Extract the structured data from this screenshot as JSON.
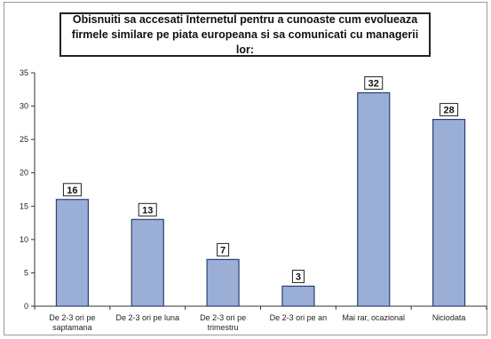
{
  "colors": {
    "bar": "#9aaed6",
    "bar_stroke": "#2b3f73",
    "axis": "#333333",
    "label_box": "#ffffff"
  },
  "chart_data": {
    "type": "bar",
    "title_lines": [
      "Obisnuiti sa accesati Internetul pentru a cunoaste cum evolueaza",
      "firmele similare pe piata europeana si sa comunicati cu managerii lor:"
    ],
    "categories": [
      [
        "De 2-3 ori pe",
        "saptamana"
      ],
      [
        "De 2-3 ori pe luna"
      ],
      [
        "De 2-3 ori pe",
        "trimestru"
      ],
      [
        "De 2-3 ori pe an"
      ],
      [
        "Mai rar, ocazional"
      ],
      [
        "Niciodata"
      ]
    ],
    "values": [
      16,
      13,
      7,
      3,
      32,
      28
    ],
    "data_labels": [
      "16",
      "13",
      "7",
      "3",
      "32",
      "28"
    ],
    "ylim": [
      0,
      35
    ],
    "yticks": [
      0,
      5,
      10,
      15,
      20,
      25,
      30,
      35
    ],
    "grid": false,
    "legend": "none"
  }
}
